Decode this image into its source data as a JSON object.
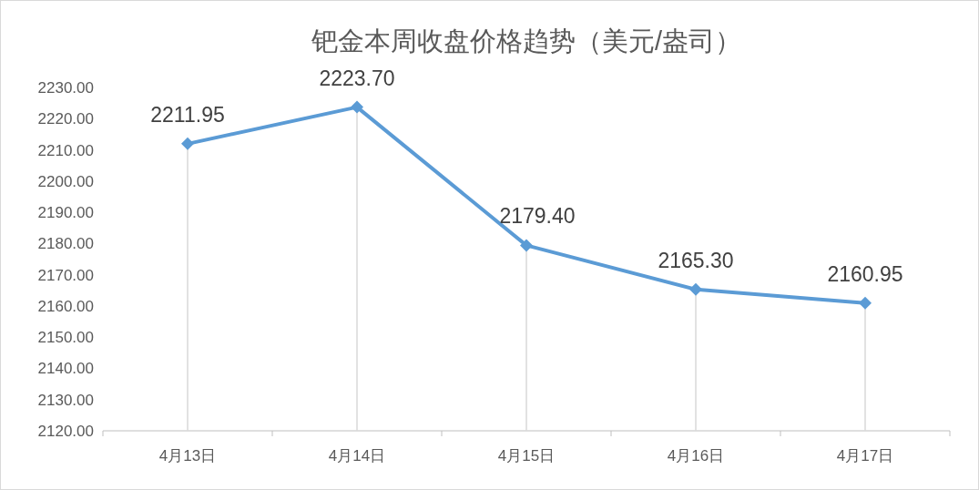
{
  "chart_data": {
    "type": "line",
    "title": "钯金本周收盘价格趋势（美元/盎司）",
    "categories": [
      "4月13日",
      "4月14日",
      "4月15日",
      "4月16日",
      "4月17日"
    ],
    "series": [
      {
        "color": "#5b9bd5",
        "values": [
          2211.95,
          2223.7,
          2179.4,
          2165.3,
          2160.95
        ],
        "value_labels": [
          "2211.95",
          "2223.70",
          "2179.40",
          "2165.30",
          "2160.95"
        ]
      }
    ],
    "ylim": [
      2120,
      2230
    ],
    "yticks": [
      {
        "value": 2120,
        "label": "2120.00"
      },
      {
        "value": 2130,
        "label": "2130.00"
      },
      {
        "value": 2140,
        "label": "2140.00"
      },
      {
        "value": 2150,
        "label": "2150.00"
      },
      {
        "value": 2160,
        "label": "2160.00"
      },
      {
        "value": 2170,
        "label": "2170.00"
      },
      {
        "value": 2180,
        "label": "2180.00"
      },
      {
        "value": 2190,
        "label": "2190.00"
      },
      {
        "value": 2200,
        "label": "2200.00"
      },
      {
        "value": 2210,
        "label": "2210.00"
      },
      {
        "value": 2220,
        "label": "2220.00"
      },
      {
        "value": 2230,
        "label": "2230.00"
      }
    ],
    "marker": "diamond",
    "line_style": "solid",
    "grid": "x"
  }
}
